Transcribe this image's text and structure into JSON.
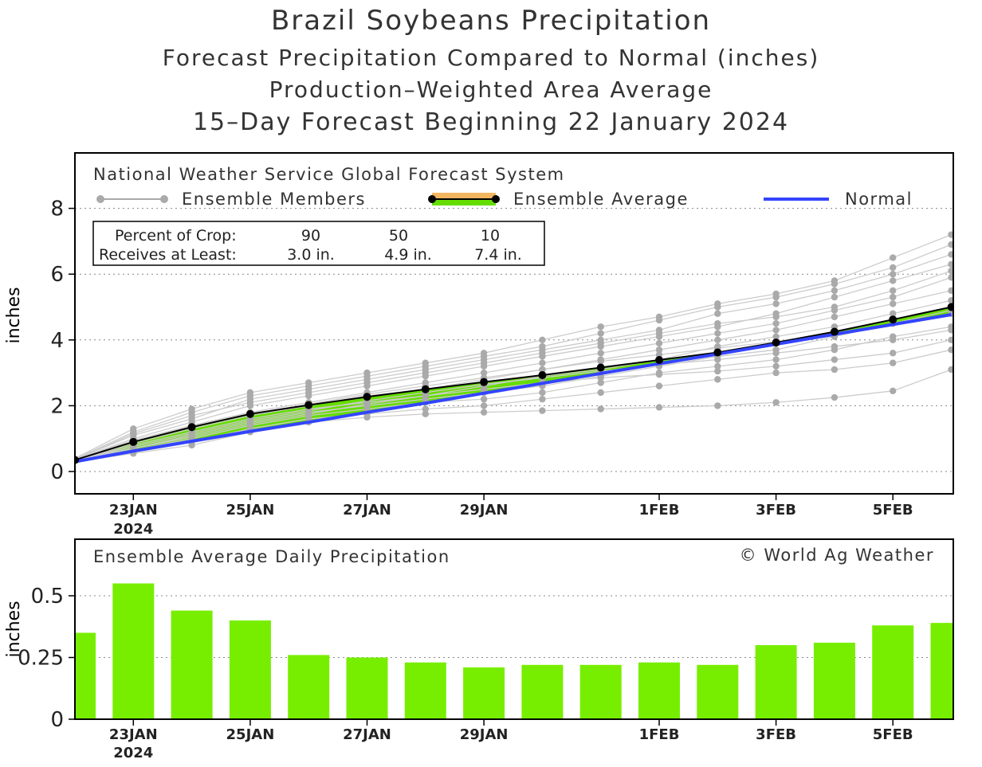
{
  "titles": {
    "title": "Brazil Soybeans Precipitation",
    "subtitle1": "Forecast Precipitation Compared to Normal (inches)",
    "subtitle2": "Production–Weighted Area Average",
    "subtitle3": "15–Day Forecast Beginning 22 January 2024"
  },
  "legend": {
    "source": "National Weather Service Global Forecast System",
    "members": "Ensemble Members",
    "average": "Ensemble Average",
    "normal": "Normal"
  },
  "crop_table": {
    "row1_label": "Percent of Crop:",
    "row1_values": [
      "90",
      "50",
      "10"
    ],
    "row2_label": "Receives at Least:",
    "row2_values": [
      "3.0 in.",
      "4.9 in.",
      "7.4 in."
    ]
  },
  "bottom": {
    "label": "Ensemble Average Daily Precipitation",
    "copyright": "© World Ag Weather"
  },
  "colors": {
    "ensemble_fill": "#66dd00",
    "normal_line": "#3344ff",
    "members": "#aaaaaa",
    "bars": "#77ee00"
  },
  "chart_data": [
    {
      "type": "line",
      "ylabel": "inches",
      "ylim": [
        0,
        9
      ],
      "yticks": [
        0,
        2,
        4,
        6,
        8
      ],
      "grid": "dotted horizontal",
      "xticks": [
        {
          "day": 1,
          "label": "23JAN",
          "sub": "2024"
        },
        {
          "day": 3,
          "label": "25JAN",
          "sub": ""
        },
        {
          "day": 5,
          "label": "27JAN",
          "sub": ""
        },
        {
          "day": 7,
          "label": "29JAN",
          "sub": ""
        },
        {
          "day": 10,
          "label": "1FEB",
          "sub": ""
        },
        {
          "day": 12,
          "label": "3FEB",
          "sub": ""
        },
        {
          "day": 14,
          "label": "5FEB",
          "sub": ""
        }
      ],
      "x": [
        0,
        1,
        2,
        3,
        4,
        5,
        6,
        7,
        8,
        9,
        10,
        11,
        12,
        13,
        14,
        15
      ],
      "series": [
        {
          "name": "Ensemble Average",
          "values": [
            0.35,
            0.9,
            1.35,
            1.75,
            2.02,
            2.27,
            2.5,
            2.72,
            2.93,
            3.16,
            3.39,
            3.62,
            3.92,
            4.25,
            4.62,
            5.0
          ]
        },
        {
          "name": "Normal",
          "values": [
            0.3,
            0.62,
            0.92,
            1.22,
            1.5,
            1.8,
            2.08,
            2.38,
            2.68,
            2.98,
            3.28,
            3.57,
            3.87,
            4.17,
            4.47,
            4.77
          ]
        }
      ],
      "members": [
        [
          0.4,
          1.3,
          1.9,
          2.4,
          2.7,
          3.0,
          3.3,
          3.6,
          4.0,
          4.4,
          4.7,
          5.1,
          5.4,
          5.8,
          6.5,
          7.2
        ],
        [
          0.38,
          1.2,
          1.8,
          2.3,
          2.6,
          2.9,
          3.2,
          3.5,
          3.8,
          4.2,
          4.6,
          5.0,
          5.3,
          5.7,
          6.2,
          6.9
        ],
        [
          0.37,
          1.1,
          1.6,
          2.2,
          2.5,
          2.8,
          3.1,
          3.4,
          3.7,
          4.0,
          4.3,
          4.8,
          5.1,
          5.5,
          6.0,
          6.6
        ],
        [
          0.36,
          1.0,
          1.5,
          2.0,
          2.3,
          2.6,
          2.9,
          3.2,
          3.5,
          3.8,
          4.1,
          4.4,
          4.8,
          5.3,
          5.8,
          6.3
        ],
        [
          0.35,
          0.95,
          1.4,
          1.8,
          2.1,
          2.4,
          2.7,
          3.0,
          3.3,
          3.6,
          3.9,
          4.2,
          4.5,
          4.9,
          5.3,
          5.9
        ],
        [
          0.34,
          0.85,
          1.3,
          1.7,
          2.0,
          2.3,
          2.5,
          2.8,
          3.1,
          3.4,
          3.7,
          4.0,
          4.3,
          4.7,
          5.1,
          5.5
        ],
        [
          0.33,
          0.8,
          1.2,
          1.6,
          1.9,
          2.1,
          2.3,
          2.6,
          2.9,
          3.1,
          3.4,
          3.8,
          4.1,
          4.4,
          4.8,
          5.2
        ],
        [
          0.32,
          0.7,
          1.1,
          1.5,
          1.8,
          2.0,
          2.2,
          2.4,
          2.6,
          2.9,
          3.2,
          3.5,
          3.7,
          4.1,
          4.5,
          4.8
        ],
        [
          0.31,
          0.65,
          1.0,
          1.4,
          1.7,
          1.9,
          2.1,
          2.2,
          2.4,
          2.7,
          3.0,
          3.2,
          3.4,
          3.7,
          4.1,
          4.4
        ],
        [
          0.3,
          0.6,
          0.9,
          1.3,
          1.6,
          1.75,
          1.9,
          2.0,
          2.2,
          2.4,
          2.6,
          2.8,
          3.0,
          3.1,
          3.3,
          3.7
        ],
        [
          0.3,
          0.55,
          0.8,
          1.2,
          1.5,
          1.65,
          1.75,
          1.8,
          1.85,
          1.9,
          1.95,
          2.0,
          2.1,
          2.25,
          2.45,
          3.1
        ],
        [
          0.36,
          1.15,
          1.7,
          2.1,
          2.4,
          2.7,
          3.0,
          3.3,
          3.6,
          3.9,
          4.2,
          4.5,
          4.7,
          5.0,
          5.5,
          6.1
        ],
        [
          0.34,
          0.9,
          1.35,
          1.75,
          2.05,
          2.35,
          2.6,
          2.85,
          3.1,
          3.35,
          3.55,
          3.75,
          3.95,
          4.2,
          4.5,
          4.9
        ],
        [
          0.33,
          0.75,
          1.15,
          1.55,
          1.85,
          2.15,
          2.4,
          2.65,
          2.85,
          3.05,
          3.25,
          3.4,
          3.6,
          3.8,
          4.0,
          4.3
        ],
        [
          0.32,
          0.7,
          1.05,
          1.45,
          1.75,
          2.05,
          2.3,
          2.5,
          2.7,
          2.85,
          2.95,
          3.05,
          3.2,
          3.4,
          3.6,
          4.0
        ]
      ]
    },
    {
      "type": "bar",
      "ylabel": "inches",
      "ylim": [
        0,
        0.6
      ],
      "yticks": [
        0,
        0.25,
        0.5
      ],
      "ytick_labels": [
        "0",
        "0.25",
        "0.5"
      ],
      "x": [
        0,
        1,
        2,
        3,
        4,
        5,
        6,
        7,
        8,
        9,
        10,
        11,
        12,
        13,
        14,
        15
      ],
      "values": [
        0.35,
        0.55,
        0.44,
        0.4,
        0.26,
        0.25,
        0.23,
        0.21,
        0.22,
        0.22,
        0.23,
        0.22,
        0.3,
        0.31,
        0.38,
        0.39
      ]
    }
  ]
}
